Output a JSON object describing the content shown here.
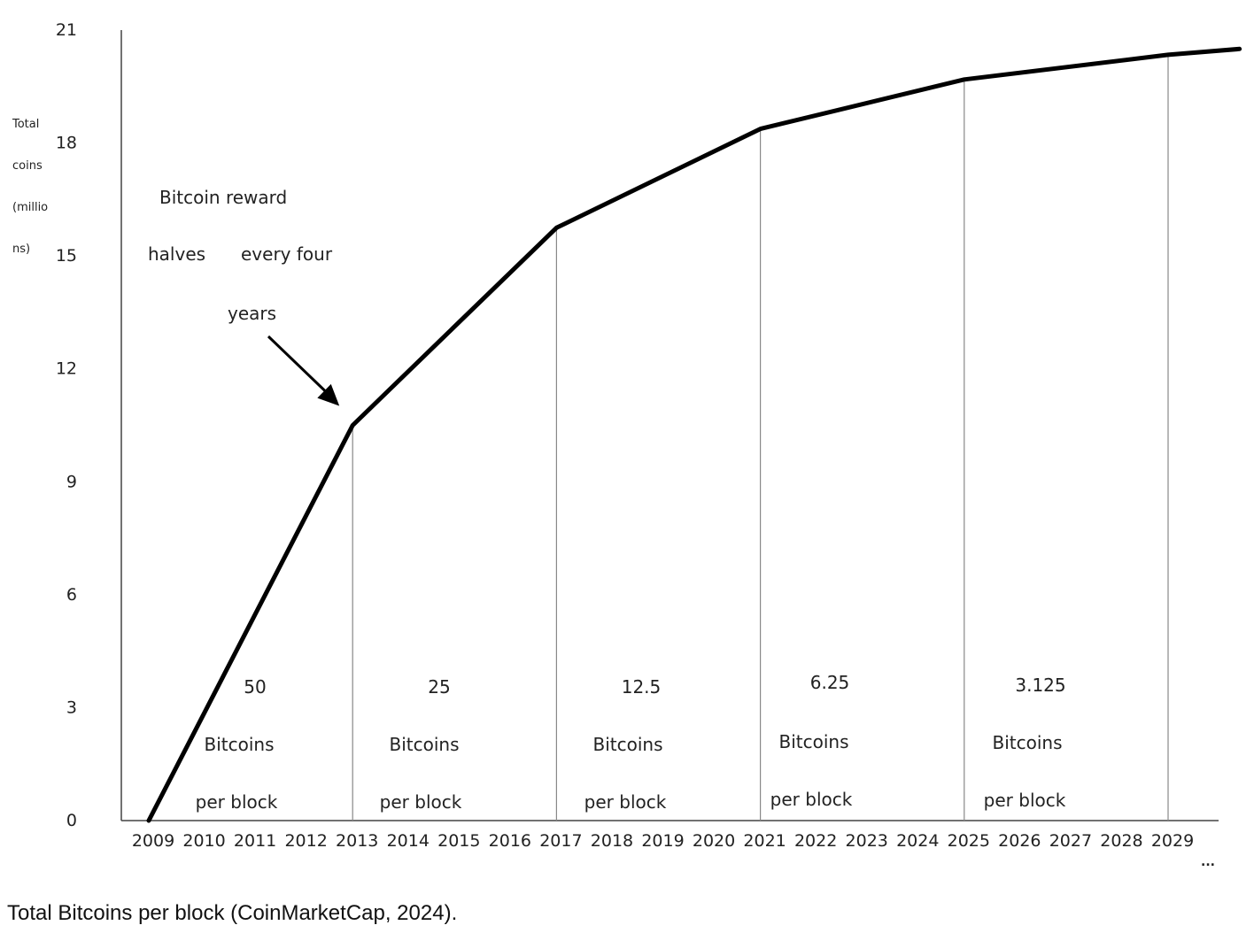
{
  "chart_data": {
    "type": "line",
    "ylabel_lines": [
      "Total",
      "coins",
      "(millio",
      "ns)"
    ],
    "y_ticks": [
      0,
      3,
      6,
      9,
      12,
      15,
      18,
      21
    ],
    "ylim": [
      0,
      21
    ],
    "x_ticks": [
      "2009",
      "2010",
      "2011",
      "2012",
      "2013",
      "2014",
      "2015",
      "2016",
      "2017",
      "2018",
      "2019",
      "2020",
      "2021",
      "2022",
      "2023",
      "2024",
      "2025",
      "2026",
      "2027",
      "2028",
      "2029"
    ],
    "x_more": "...",
    "xlim": [
      2008.6,
      2030.8
    ],
    "series": [
      {
        "x": [
          2009,
          2013,
          2017,
          2021,
          2025,
          2029,
          2030.4
        ],
        "y": [
          0,
          10.5,
          15.75,
          18.375,
          19.6875,
          20.34375,
          20.5
        ]
      }
    ],
    "halving_lines": [
      2013,
      2017,
      2021,
      2025,
      2029
    ],
    "halving_line_top_y": [
      10.5,
      15.75,
      18.375,
      19.6875,
      20.34375
    ],
    "annotation": {
      "lines": [
        "Bitcoin reward",
        "halves",
        "every four",
        "years"
      ],
      "arrow_to": {
        "x": 2013,
        "y": 10.5
      }
    },
    "rewards": [
      {
        "amount": "50",
        "unit": "Bitcoins",
        "suffix": "per block"
      },
      {
        "amount": "25",
        "unit": "Bitcoins",
        "suffix": "per block"
      },
      {
        "amount": "12.5",
        "unit": "Bitcoins",
        "suffix": "per block"
      },
      {
        "amount": "6.25",
        "unit": "Bitcoins",
        "suffix": "per block"
      },
      {
        "amount": "3.125",
        "unit": "Bitcoins",
        "suffix": "per block"
      }
    ],
    "colors": {
      "line": "#000000",
      "axis": "#444444",
      "halving": "#888888",
      "text": "#222222"
    }
  },
  "caption": "Total Bitcoins per block (CoinMarketCap, 2024)."
}
